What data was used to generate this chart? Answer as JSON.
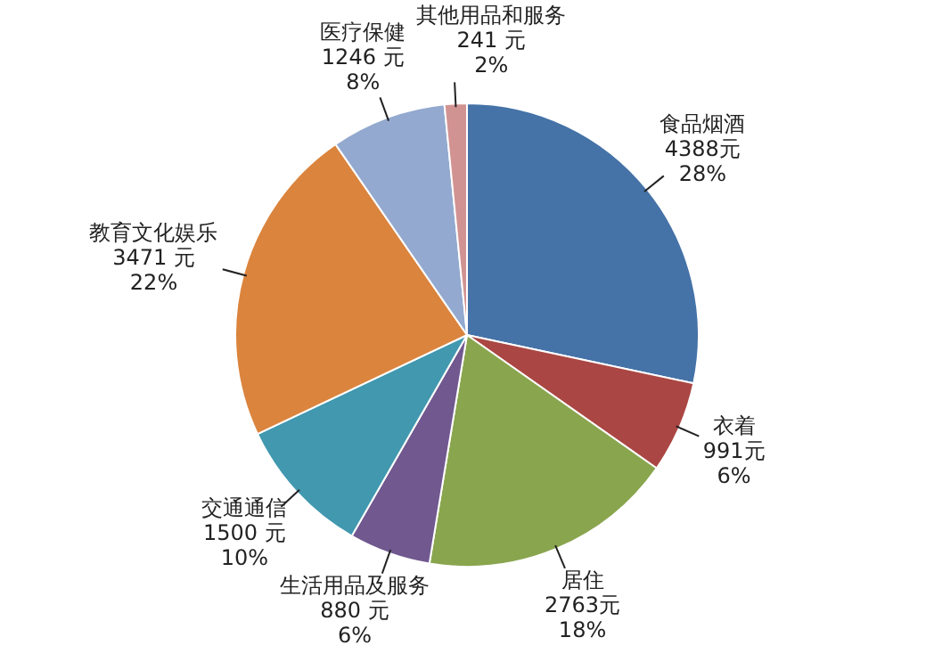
{
  "chart_data": {
    "type": "pie",
    "categories": [
      "食品烟酒",
      "衣着",
      "居住",
      "生活用品及服务",
      "交通通信",
      "教育文化娱乐",
      "医疗保健",
      "其他用品和服务"
    ],
    "values": [
      4388,
      991,
      2763,
      880,
      1500,
      3471,
      1246,
      241
    ],
    "colors": [
      "#4572a7",
      "#aa4643",
      "#89a54e",
      "#71588f",
      "#4198af",
      "#db843d",
      "#93a9cf",
      "#d19392"
    ],
    "value_labels": [
      "4388元\n28%",
      "991元\n6%",
      "2763元\n18%",
      "880 元\n6%",
      "1500 元\n10%",
      "3471 元\n22%",
      "1246 元\n8%",
      "241 元\n2%"
    ],
    "legend": false
  }
}
